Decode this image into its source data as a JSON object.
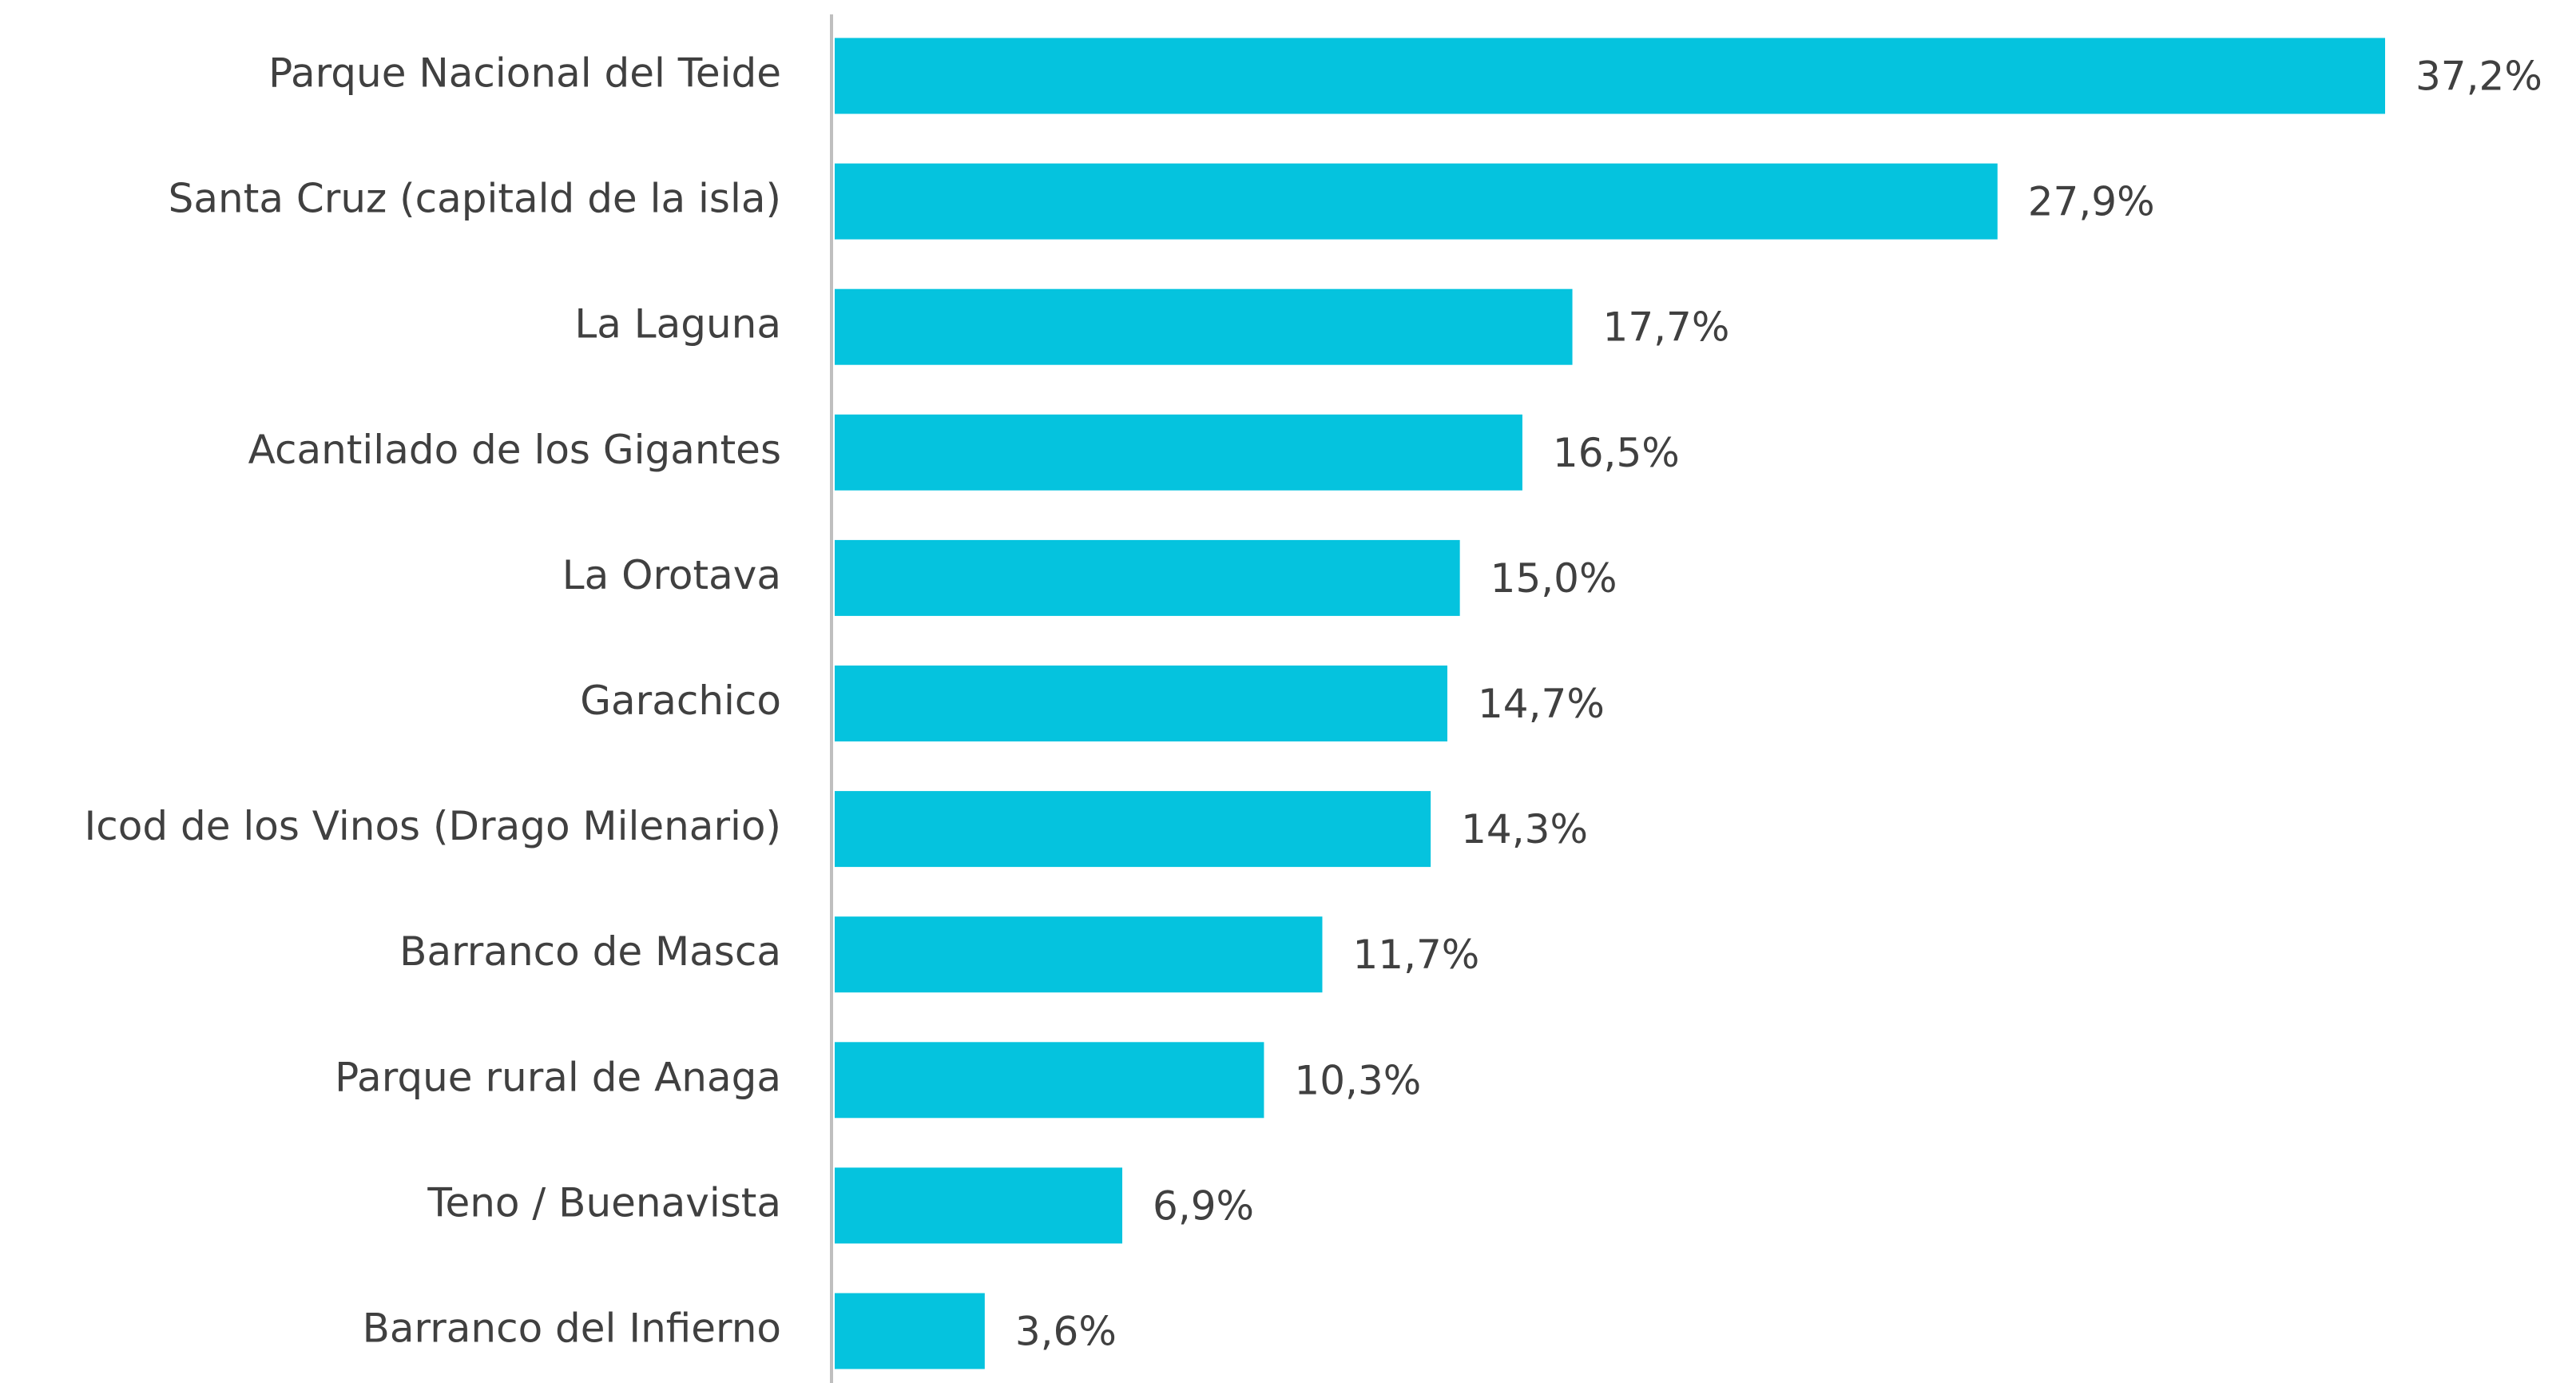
{
  "chart_data": {
    "type": "bar",
    "orientation": "horizontal",
    "categories": [
      "Parque Nacional del Teide",
      "Santa Cruz (capitald de la isla)",
      "La Laguna",
      "Acantilado de los Gigantes",
      "La Orotava",
      "Garachico",
      "Icod de los Vinos (Drago Milenario)",
      "Barranco de Masca",
      "Parque rural de Anaga",
      "Teno / Buenavista",
      "Barranco del Infierno"
    ],
    "values": [
      37.2,
      27.9,
      17.7,
      16.5,
      15.0,
      14.7,
      14.3,
      11.7,
      10.3,
      6.9,
      3.6
    ],
    "value_labels": [
      "37,2%",
      "27,9%",
      "17,7%",
      "16,5%",
      "15,0%",
      "14,7%",
      "14,3%",
      "11,7%",
      "10,3%",
      "6,9%",
      "3,6%"
    ],
    "color": "#05c3de"
  }
}
